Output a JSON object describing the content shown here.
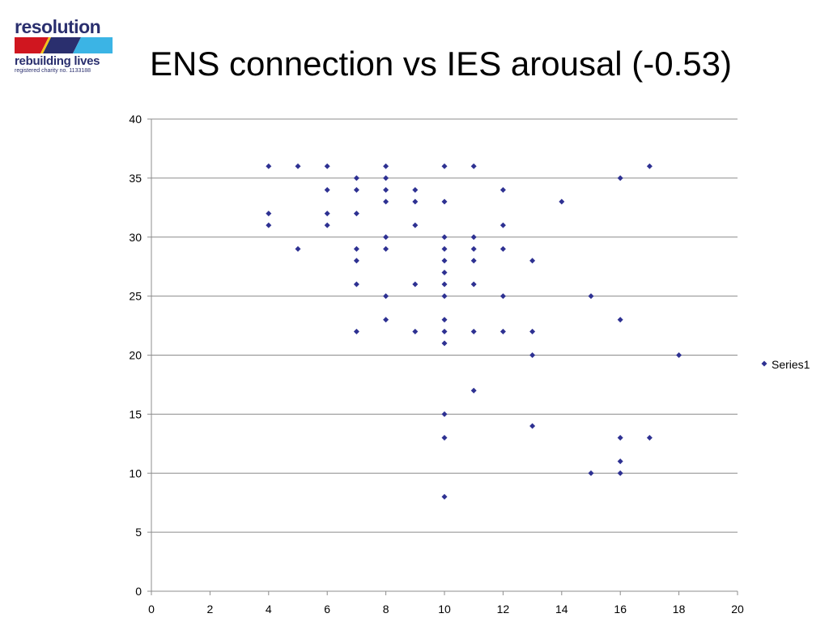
{
  "logo": {
    "word": "resolution",
    "tagline": "rebuilding lives",
    "charity": "registered charity no. 1133188",
    "stripe_colors": [
      "#d0161f",
      "#2a2f6e",
      "#f2c318",
      "#3bb4e5"
    ]
  },
  "title": "ENS connection vs IES arousal (-0.53)",
  "chart_data": {
    "type": "scatter",
    "title": "ENS connection vs IES arousal (-0.53)",
    "xlabel": "",
    "ylabel": "",
    "xlim": [
      0,
      20
    ],
    "ylim": [
      0,
      40
    ],
    "x_ticks": [
      "0",
      "2",
      "4",
      "6",
      "8",
      "10",
      "12",
      "14",
      "16",
      "18",
      "20"
    ],
    "y_ticks": [
      "0",
      "5",
      "10",
      "15",
      "20",
      "25",
      "30",
      "35",
      "40"
    ],
    "grid": "horizontal",
    "legend_position": "right",
    "marker_color": "#2e3192",
    "series": [
      {
        "name": "Series1",
        "points": [
          [
            4,
            36
          ],
          [
            5,
            36
          ],
          [
            6,
            36
          ],
          [
            8,
            36
          ],
          [
            10,
            36
          ],
          [
            11,
            36
          ],
          [
            17,
            36
          ],
          [
            7,
            35
          ],
          [
            8,
            35
          ],
          [
            16,
            35
          ],
          [
            6,
            34
          ],
          [
            7,
            34
          ],
          [
            8,
            34
          ],
          [
            9,
            34
          ],
          [
            12,
            34
          ],
          [
            8,
            33
          ],
          [
            9,
            33
          ],
          [
            10,
            33
          ],
          [
            14,
            33
          ],
          [
            4,
            32
          ],
          [
            6,
            32
          ],
          [
            7,
            32
          ],
          [
            4,
            31
          ],
          [
            6,
            31
          ],
          [
            9,
            31
          ],
          [
            12,
            31
          ],
          [
            8,
            30
          ],
          [
            10,
            30
          ],
          [
            11,
            30
          ],
          [
            5,
            29
          ],
          [
            7,
            29
          ],
          [
            8,
            29
          ],
          [
            10,
            29
          ],
          [
            11,
            29
          ],
          [
            12,
            29
          ],
          [
            7,
            28
          ],
          [
            10,
            28
          ],
          [
            11,
            28
          ],
          [
            13,
            28
          ],
          [
            10,
            27
          ],
          [
            7,
            26
          ],
          [
            9,
            26
          ],
          [
            10,
            26
          ],
          [
            11,
            26
          ],
          [
            8,
            25
          ],
          [
            10,
            25
          ],
          [
            12,
            25
          ],
          [
            15,
            25
          ],
          [
            8,
            23
          ],
          [
            10,
            23
          ],
          [
            16,
            23
          ],
          [
            7,
            22
          ],
          [
            9,
            22
          ],
          [
            10,
            22
          ],
          [
            11,
            22
          ],
          [
            12,
            22
          ],
          [
            13,
            22
          ],
          [
            10,
            21
          ],
          [
            13,
            20
          ],
          [
            18,
            20
          ],
          [
            11,
            17
          ],
          [
            10,
            15
          ],
          [
            13,
            14
          ],
          [
            10,
            13
          ],
          [
            16,
            13
          ],
          [
            17,
            13
          ],
          [
            16,
            11
          ],
          [
            15,
            10
          ],
          [
            16,
            10
          ],
          [
            10,
            8
          ]
        ]
      }
    ]
  }
}
